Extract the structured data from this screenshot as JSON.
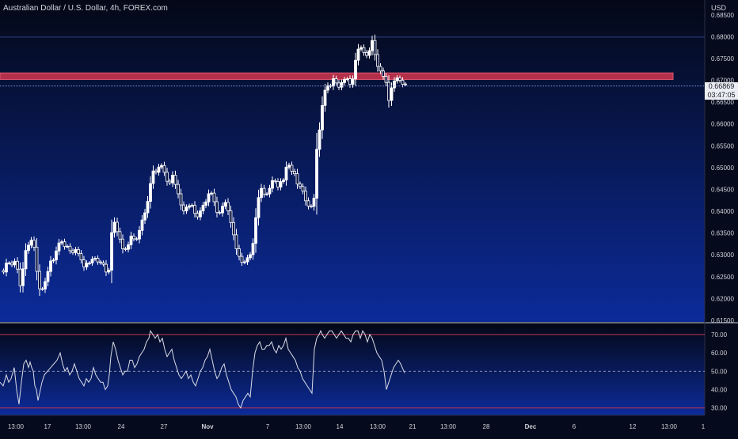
{
  "header": {
    "title": "Australian Dollar / U.S. Dollar, 4h, FOREX.com",
    "currency": "USD",
    "last_price": "0.66869",
    "countdown": "03:47:05"
  },
  "colors": {
    "background_top": "#040816",
    "background_bottom": "#0c2b9a",
    "candle": "#ffffff",
    "zone": "#c2334d",
    "rsi_line": "#d9dce6",
    "rsi_level": "#c2334d",
    "axis_text": "#d1d4dc",
    "price_line": "#7a8ad6"
  },
  "chart_data": [
    {
      "type": "candlestick",
      "title": "Australian Dollar / U.S. Dollar, 4h, FOREX.com",
      "ylabel": "USD",
      "ylim": [
        0.615,
        0.6875
      ],
      "price_ticks": [
        "0.68500",
        "0.68000",
        "0.67500",
        "0.67000",
        "0.66500",
        "0.66000",
        "0.65500",
        "0.65000",
        "0.64500",
        "0.64000",
        "0.63500",
        "0.63000",
        "0.62500",
        "0.62000",
        "0.61500"
      ],
      "x_ticks": [
        "13:00",
        "17",
        "13:00",
        "24",
        "27",
        "Nov",
        "7",
        "13:00",
        "14",
        "13:00",
        "21",
        "13:00",
        "28",
        "Dec",
        "6",
        "12",
        "13:00",
        "1"
      ],
      "x_ticks_bold": [
        "Nov",
        "Dec"
      ],
      "last_price": 0.66869,
      "resistance_zone": [
        0.6702,
        0.6717
      ],
      "horizontal_lines": [
        0.6799
      ],
      "price_path": [
        [
          0,
          0.627
        ],
        [
          4,
          0.6265
        ],
        [
          8,
          0.6285
        ],
        [
          11,
          0.6278
        ],
        [
          14,
          0.6282
        ],
        [
          18,
          0.629
        ],
        [
          21,
          0.6265
        ],
        [
          24,
          0.622
        ],
        [
          27,
          0.6255
        ],
        [
          30,
          0.6305
        ],
        [
          33,
          0.632
        ],
        [
          36,
          0.6318
        ],
        [
          38,
          0.633
        ],
        [
          40,
          0.6325
        ],
        [
          42,
          0.632
        ],
        [
          44,
          0.628
        ],
        [
          46,
          0.6258
        ],
        [
          48,
          0.623
        ],
        [
          50,
          0.6205
        ],
        [
          53,
          0.6218
        ],
        [
          56,
          0.624
        ],
        [
          60,
          0.6265
        ],
        [
          64,
          0.6285
        ],
        [
          68,
          0.63
        ],
        [
          72,
          0.6318
        ],
        [
          76,
          0.634
        ],
        [
          79,
          0.6328
        ],
        [
          82,
          0.632
        ],
        [
          85,
          0.6318
        ],
        [
          88,
          0.6305
        ],
        [
          91,
          0.631
        ],
        [
          94,
          0.6318
        ],
        [
          97,
          0.6305
        ],
        [
          100,
          0.6292
        ],
        [
          103,
          0.6278
        ],
        [
          106,
          0.6275
        ],
        [
          109,
          0.6285
        ],
        [
          112,
          0.6278
        ],
        [
          115,
          0.6283
        ],
        [
          118,
          0.6298
        ],
        [
          121,
          0.6288
        ],
        [
          124,
          0.6282
        ],
        [
          127,
          0.6275
        ],
        [
          130,
          0.6272
        ],
        [
          133,
          0.6262
        ],
        [
          136,
          0.626
        ],
        [
          138,
          0.628
        ],
        [
          140,
          0.6345
        ],
        [
          143,
          0.6385
        ],
        [
          146,
          0.636
        ],
        [
          149,
          0.634
        ],
        [
          152,
          0.633
        ],
        [
          155,
          0.6315
        ],
        [
          158,
          0.6318
        ],
        [
          161,
          0.6322
        ],
        [
          164,
          0.634
        ],
        [
          167,
          0.6345
        ],
        [
          170,
          0.6335
        ],
        [
          173,
          0.6345
        ],
        [
          176,
          0.6358
        ],
        [
          179,
          0.638
        ],
        [
          182,
          0.64
        ],
        [
          185,
          0.642
        ],
        [
          188,
          0.645
        ],
        [
          191,
          0.648
        ],
        [
          194,
          0.6495
        ],
        [
          197,
          0.649
        ],
        [
          200,
          0.6505
        ],
        [
          203,
          0.65
        ],
        [
          206,
          0.6485
        ],
        [
          209,
          0.6475
        ],
        [
          212,
          0.646
        ],
        [
          215,
          0.647
        ],
        [
          218,
          0.648
        ],
        [
          221,
          0.6465
        ],
        [
          224,
          0.644
        ],
        [
          227,
          0.6415
        ],
        [
          230,
          0.6405
        ],
        [
          233,
          0.641
        ],
        [
          236,
          0.6418
        ],
        [
          239,
          0.6408
        ],
        [
          242,
          0.6412
        ],
        [
          245,
          0.64
        ],
        [
          248,
          0.639
        ],
        [
          251,
          0.6395
        ],
        [
          254,
          0.6405
        ],
        [
          257,
          0.6415
        ],
        [
          260,
          0.643
        ],
        [
          263,
          0.6445
        ],
        [
          266,
          0.6438
        ],
        [
          269,
          0.642
        ],
        [
          272,
          0.6402
        ],
        [
          275,
          0.6395
        ],
        [
          278,
          0.64
        ],
        [
          281,
          0.641
        ],
        [
          284,
          0.6415
        ],
        [
          287,
          0.6402
        ],
        [
          290,
          0.638
        ],
        [
          293,
          0.6345
        ],
        [
          296,
          0.633
        ],
        [
          299,
          0.631
        ],
        [
          302,
          0.629
        ],
        [
          305,
          0.628
        ],
        [
          308,
          0.629
        ],
        [
          311,
          0.6298
        ],
        [
          314,
          0.63
        ],
        [
          317,
          0.6298
        ],
        [
          320,
          0.635
        ],
        [
          323,
          0.641
        ],
        [
          326,
          0.644
        ],
        [
          329,
          0.645
        ],
        [
          332,
          0.6435
        ],
        [
          335,
          0.644
        ],
        [
          338,
          0.645
        ],
        [
          341,
          0.646
        ],
        [
          344,
          0.647
        ],
        [
          347,
          0.6462
        ],
        [
          350,
          0.6458
        ],
        [
          353,
          0.647
        ],
        [
          356,
          0.6465
        ],
        [
          359,
          0.647
        ],
        [
          362,
          0.652
        ],
        [
          365,
          0.65
        ],
        [
          368,
          0.649
        ],
        [
          371,
          0.648
        ],
        [
          374,
          0.647
        ],
        [
          377,
          0.646
        ],
        [
          380,
          0.645
        ],
        [
          383,
          0.644
        ],
        [
          386,
          0.6425
        ],
        [
          389,
          0.6415
        ],
        [
          392,
          0.641
        ],
        [
          395,
          0.6405
        ],
        [
          398,
          0.654
        ],
        [
          401,
          0.656
        ],
        [
          403,
          0.66
        ],
        [
          405,
          0.663
        ],
        [
          407,
          0.665
        ],
        [
          409,
          0.667
        ],
        [
          411,
          0.6685
        ],
        [
          414,
          0.6695
        ],
        [
          417,
          0.6688
        ],
        [
          420,
          0.67
        ],
        [
          423,
          0.669
        ],
        [
          426,
          0.6685
        ],
        [
          429,
          0.669
        ],
        [
          432,
          0.6702
        ],
        [
          435,
          0.6695
        ],
        [
          438,
          0.6698
        ],
        [
          441,
          0.6692
        ],
        [
          444,
          0.67
        ],
        [
          447,
          0.672
        ],
        [
          449,
          0.676
        ],
        [
          451,
          0.678
        ],
        [
          453,
          0.677
        ],
        [
          455,
          0.6775
        ],
        [
          457,
          0.676
        ],
        [
          460,
          0.6765
        ],
        [
          463,
          0.6762
        ],
        [
          466,
          0.6775
        ],
        [
          469,
          0.679
        ],
        [
          472,
          0.676
        ],
        [
          475,
          0.674
        ],
        [
          478,
          0.673
        ],
        [
          481,
          0.672
        ],
        [
          484,
          0.67
        ],
        [
          487,
          0.669
        ],
        [
          489,
          0.6655
        ],
        [
          491,
          0.666
        ],
        [
          494,
          0.669
        ],
        [
          497,
          0.6695
        ],
        [
          500,
          0.67
        ],
        [
          503,
          0.6705
        ],
        [
          506,
          0.6698
        ],
        [
          508,
          0.669
        ],
        [
          511,
          0.66869
        ]
      ]
    },
    {
      "type": "line",
      "ylim": [
        26,
        76
      ],
      "y_ticks": [
        "70.00",
        "60.00",
        "50.00",
        "40.00",
        "30.00"
      ],
      "levels": [
        70,
        50,
        30
      ],
      "rsi_path": [
        [
          0,
          44
        ],
        [
          4,
          42
        ],
        [
          8,
          48
        ],
        [
          11,
          44
        ],
        [
          14,
          46
        ],
        [
          18,
          52
        ],
        [
          21,
          40
        ],
        [
          24,
          32
        ],
        [
          27,
          44
        ],
        [
          30,
          54
        ],
        [
          33,
          56
        ],
        [
          36,
          52
        ],
        [
          38,
          55
        ],
        [
          40,
          52
        ],
        [
          42,
          50
        ],
        [
          44,
          42
        ],
        [
          46,
          40
        ],
        [
          48,
          34
        ],
        [
          50,
          38
        ],
        [
          53,
          44
        ],
        [
          56,
          48
        ],
        [
          60,
          50
        ],
        [
          64,
          52
        ],
        [
          68,
          54
        ],
        [
          72,
          56
        ],
        [
          76,
          60
        ],
        [
          79,
          54
        ],
        [
          82,
          50
        ],
        [
          85,
          52
        ],
        [
          88,
          48
        ],
        [
          91,
          50
        ],
        [
          94,
          54
        ],
        [
          97,
          50
        ],
        [
          100,
          46
        ],
        [
          103,
          44
        ],
        [
          106,
          42
        ],
        [
          109,
          46
        ],
        [
          112,
          44
        ],
        [
          115,
          46
        ],
        [
          118,
          52
        ],
        [
          121,
          48
        ],
        [
          124,
          46
        ],
        [
          127,
          44
        ],
        [
          130,
          44
        ],
        [
          133,
          40
        ],
        [
          136,
          42
        ],
        [
          138,
          48
        ],
        [
          140,
          58
        ],
        [
          143,
          66
        ],
        [
          146,
          62
        ],
        [
          149,
          56
        ],
        [
          152,
          52
        ],
        [
          155,
          48
        ],
        [
          158,
          50
        ],
        [
          161,
          50
        ],
        [
          164,
          56
        ],
        [
          167,
          56
        ],
        [
          170,
          52
        ],
        [
          173,
          54
        ],
        [
          176,
          58
        ],
        [
          179,
          60
        ],
        [
          182,
          62
        ],
        [
          185,
          66
        ],
        [
          188,
          68
        ],
        [
          190,
          72
        ],
        [
          193,
          70
        ],
        [
          196,
          68
        ],
        [
          199,
          70
        ],
        [
          202,
          66
        ],
        [
          205,
          68
        ],
        [
          208,
          62
        ],
        [
          211,
          58
        ],
        [
          214,
          60
        ],
        [
          217,
          62
        ],
        [
          220,
          56
        ],
        [
          223,
          52
        ],
        [
          226,
          48
        ],
        [
          229,
          46
        ],
        [
          232,
          48
        ],
        [
          235,
          50
        ],
        [
          238,
          46
        ],
        [
          241,
          48
        ],
        [
          244,
          44
        ],
        [
          247,
          42
        ],
        [
          250,
          46
        ],
        [
          253,
          50
        ],
        [
          256,
          52
        ],
        [
          259,
          56
        ],
        [
          262,
          58
        ],
        [
          265,
          62
        ],
        [
          268,
          56
        ],
        [
          271,
          50
        ],
        [
          274,
          46
        ],
        [
          277,
          48
        ],
        [
          280,
          52
        ],
        [
          283,
          54
        ],
        [
          286,
          48
        ],
        [
          289,
          44
        ],
        [
          292,
          40
        ],
        [
          295,
          38
        ],
        [
          298,
          36
        ],
        [
          301,
          32
        ],
        [
          304,
          30
        ],
        [
          307,
          34
        ],
        [
          310,
          36
        ],
        [
          313,
          38
        ],
        [
          316,
          36
        ],
        [
          319,
          50
        ],
        [
          322,
          60
        ],
        [
          325,
          64
        ],
        [
          328,
          66
        ],
        [
          331,
          62
        ],
        [
          334,
          62
        ],
        [
          337,
          64
        ],
        [
          340,
          64
        ],
        [
          343,
          66
        ],
        [
          346,
          62
        ],
        [
          349,
          60
        ],
        [
          352,
          64
        ],
        [
          355,
          62
        ],
        [
          358,
          64
        ],
        [
          361,
          68
        ],
        [
          364,
          62
        ],
        [
          367,
          60
        ],
        [
          370,
          58
        ],
        [
          373,
          56
        ],
        [
          376,
          52
        ],
        [
          379,
          50
        ],
        [
          382,
          46
        ],
        [
          385,
          44
        ],
        [
          388,
          42
        ],
        [
          391,
          40
        ],
        [
          394,
          38
        ],
        [
          397,
          62
        ],
        [
          400,
          68
        ],
        [
          403,
          70
        ],
        [
          405,
          72
        ],
        [
          407,
          70
        ],
        [
          410,
          68
        ],
        [
          413,
          70
        ],
        [
          416,
          72
        ],
        [
          419,
          72
        ],
        [
          422,
          70
        ],
        [
          425,
          68
        ],
        [
          428,
          70
        ],
        [
          431,
          72
        ],
        [
          434,
          70
        ],
        [
          437,
          68
        ],
        [
          440,
          68
        ],
        [
          443,
          66
        ],
        [
          446,
          70
        ],
        [
          449,
          72
        ],
        [
          452,
          72
        ],
        [
          455,
          68
        ],
        [
          458,
          72
        ],
        [
          461,
          70
        ],
        [
          464,
          66
        ],
        [
          467,
          70
        ],
        [
          470,
          68
        ],
        [
          473,
          64
        ],
        [
          476,
          60
        ],
        [
          479,
          58
        ],
        [
          482,
          56
        ],
        [
          485,
          50
        ],
        [
          488,
          40
        ],
        [
          491,
          44
        ],
        [
          494,
          48
        ],
        [
          497,
          52
        ],
        [
          500,
          54
        ],
        [
          503,
          56
        ],
        [
          506,
          54
        ],
        [
          509,
          51
        ],
        [
          511,
          49
        ]
      ]
    }
  ]
}
